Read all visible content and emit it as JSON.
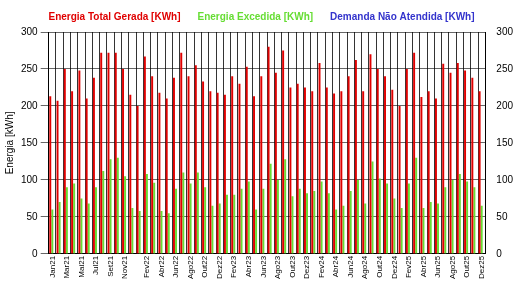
{
  "chart_data": {
    "type": "bar",
    "y_label": "Energia [kWh]",
    "categories": [
      "Jan21",
      null,
      "Mar21",
      null,
      "Mai21",
      null,
      "Jul21",
      null,
      "Set21",
      null,
      "Nov21",
      null,
      null,
      "Fev22",
      null,
      "Abr22",
      null,
      "Jun22",
      null,
      "Ago22",
      null,
      "Out22",
      null,
      "Dez22",
      null,
      "Fev23",
      null,
      "Abr23",
      null,
      "Jun23",
      null,
      "Ago23",
      null,
      "Out23",
      null,
      "Dez23",
      null,
      "Fev24",
      null,
      "Abr24",
      null,
      "Jun24",
      null,
      "Ago24",
      null,
      "Out24",
      null,
      "Dez24",
      null,
      "Fev25",
      null,
      "Abr25",
      null,
      "Jun25",
      null,
      "Ago25",
      null,
      "Out25",
      null,
      "Dez25"
    ],
    "series": [
      {
        "name": "Energia Total Gerada [KWh]",
        "color": "#e00000",
        "values": [
          213,
          207,
          250,
          220,
          248,
          210,
          238,
          272,
          272,
          272,
          250,
          215,
          200,
          267,
          240,
          218,
          210,
          238,
          272,
          240,
          255,
          233,
          220,
          218,
          215,
          240,
          230,
          253,
          213,
          240,
          280,
          245,
          275,
          225,
          230,
          225,
          220,
          258,
          225,
          217,
          220,
          240,
          262,
          220,
          270,
          250,
          240,
          222,
          200,
          250,
          272,
          212,
          220,
          210,
          257,
          245,
          258,
          248,
          238,
          220
        ]
      },
      {
        "name": "Energia Excedida [KWh]",
        "color": "#66dd33",
        "values": [
          60,
          70,
          90,
          95,
          75,
          68,
          90,
          112,
          128,
          130,
          105,
          62,
          58,
          108,
          96,
          58,
          55,
          88,
          110,
          95,
          110,
          90,
          65,
          68,
          80,
          80,
          88,
          98,
          60,
          88,
          122,
          100,
          128,
          78,
          88,
          82,
          85,
          98,
          82,
          60,
          65,
          85,
          100,
          68,
          125,
          102,
          95,
          75,
          62,
          95,
          130,
          62,
          70,
          68,
          90,
          100,
          108,
          98,
          90,
          65
        ]
      },
      {
        "name": "Demanda Não Atendida [KWh]",
        "color": "#3333cc",
        "values": [
          0,
          0,
          0,
          0,
          0,
          0,
          0,
          0,
          0,
          0,
          0,
          0,
          0,
          0,
          0,
          0,
          0,
          0,
          0,
          0,
          0,
          0,
          0,
          0,
          0,
          0,
          0,
          0,
          0,
          0,
          0,
          0,
          0,
          0,
          0,
          0,
          0,
          0,
          0,
          0,
          0,
          0,
          0,
          0,
          0,
          0,
          0,
          0,
          0,
          0,
          0,
          0,
          0,
          0,
          0,
          0,
          0,
          0,
          0,
          0
        ]
      }
    ],
    "ylim": [
      0,
      300
    ],
    "yticks": [
      0,
      50,
      100,
      150,
      200,
      250,
      300
    ],
    "y2lim": [
      0,
      300
    ],
    "y2ticks": [
      0,
      50,
      100,
      150,
      200,
      250,
      300
    ],
    "grid": true,
    "legend": "top"
  }
}
